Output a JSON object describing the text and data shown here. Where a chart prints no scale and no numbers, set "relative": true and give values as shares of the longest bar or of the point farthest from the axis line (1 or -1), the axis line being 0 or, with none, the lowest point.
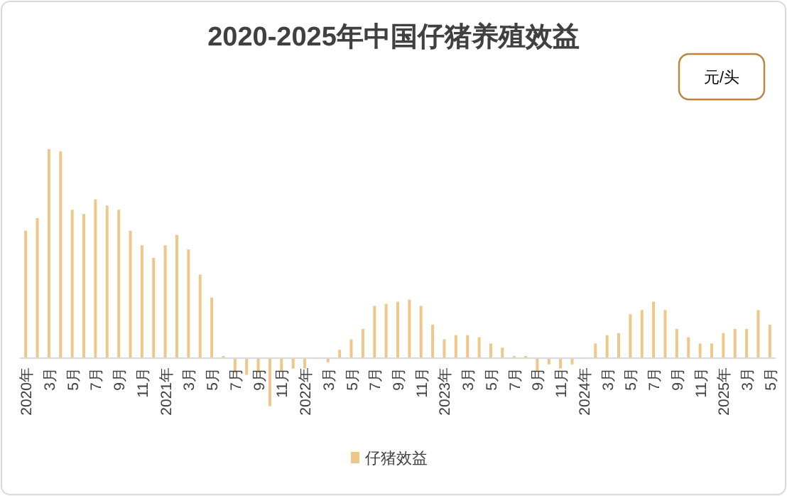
{
  "chart_data": {
    "type": "bar",
    "title": "2020-2025年中国仔猪养殖效益",
    "ylabel": "元/头",
    "relative": true,
    "legend": "bottom",
    "grid": false,
    "categories": [
      "2020年",
      null,
      "3月",
      null,
      "5月",
      null,
      "7月",
      null,
      "9月",
      null,
      "11月",
      null,
      "2021年",
      null,
      "3月",
      null,
      "5月",
      null,
      "7月",
      null,
      "9月",
      null,
      "11月",
      null,
      "2022年",
      null,
      "3月",
      null,
      "5月",
      null,
      "7月",
      null,
      "9月",
      null,
      "11月",
      null,
      "2023年",
      null,
      "3月",
      null,
      "5月",
      null,
      "7月",
      null,
      "9月",
      null,
      "11月",
      null,
      "2024年",
      null,
      "3月",
      null,
      "5月",
      null,
      "7月",
      null,
      "9月",
      null,
      "11月",
      null,
      "2025年",
      null,
      "3月",
      null,
      "5月"
    ],
    "series": [
      {
        "name": "仔猪效益",
        "color": "#f0c78a",
        "values": [
          0.61,
          0.67,
          1,
          0.99,
          0.71,
          0.69,
          0.76,
          0.73,
          0.71,
          0.61,
          0.54,
          0.48,
          0.54,
          0.59,
          0.52,
          0.4,
          0.29,
          0.01,
          -0.07,
          -0.08,
          -0.07,
          -0.23,
          -0.06,
          -0.05,
          -0.05,
          0,
          -0.02,
          0.04,
          0.09,
          0.14,
          0.25,
          0.26,
          0.27,
          0.28,
          0.25,
          0.16,
          0.09,
          0.11,
          0.11,
          0.1,
          0.07,
          0.05,
          0.01,
          0.01,
          -0.06,
          -0.03,
          -0.05,
          -0.03,
          0,
          0.07,
          0.11,
          0.12,
          0.21,
          0.23,
          0.27,
          0.23,
          0.14,
          0.1,
          0.07,
          0.07,
          0.12,
          0.14,
          0.14,
          0.23,
          0.16
        ]
      }
    ]
  }
}
